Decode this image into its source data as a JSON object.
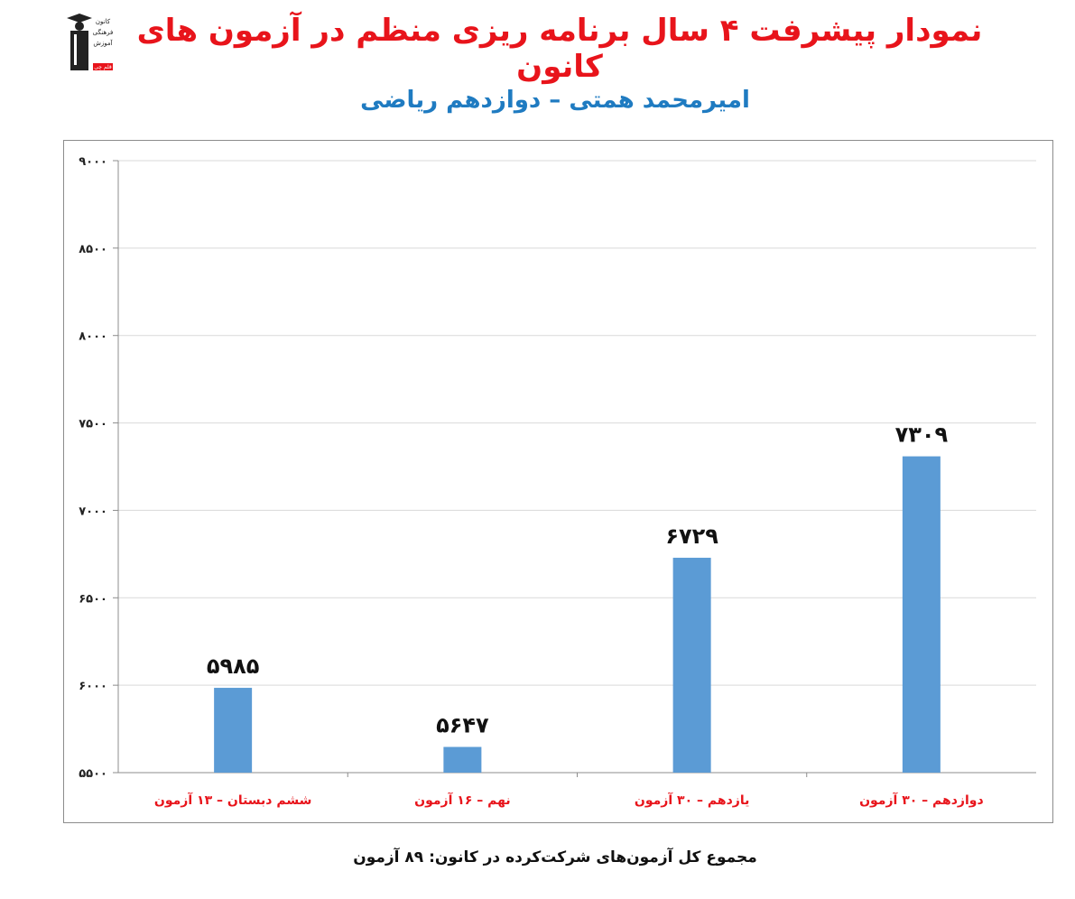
{
  "header": {
    "title": "نمودار پیشرفت ۴ سال برنامه ریزی منظم در آزمون های کانون",
    "subtitle": "امیرمحمد همتی – دوازدهم ریاضی"
  },
  "logo": {
    "icon": "graduate-figure-icon",
    "lines": [
      "کانون",
      "فرهنگی",
      "آموزش",
      "قلم چی"
    ]
  },
  "footer": {
    "text": "مجموع کل آزمون‌های شرکت‌کرده در کانون:  ۸۹ آزمون"
  },
  "colors": {
    "bar": "#5b9bd5",
    "category_label": "#e8141b",
    "grid": "#d9d9d9",
    "axis": "#8c8c8c"
  },
  "chart_data": {
    "type": "bar",
    "categories": [
      "ششم دبستان – ۱۳ آزمون",
      "نهم – ۱۶ آزمون",
      "یازدهم – ۳۰ آزمون",
      "دوازدهم – ۳۰ آزمون"
    ],
    "values": [
      5985,
      5647,
      6729,
      7309
    ],
    "value_labels": [
      "۵۹۸۵",
      "۵۶۴۷",
      "۶۷۲۹",
      "۷۳۰۹"
    ],
    "ylim": [
      5500,
      9000
    ],
    "yticks": [
      5500,
      6000,
      6500,
      7000,
      7500,
      8000,
      8500,
      9000
    ],
    "ytick_labels": [
      "۵۵۰۰",
      "۶۰۰۰",
      "۶۵۰۰",
      "۷۰۰۰",
      "۷۵۰۰",
      "۸۰۰۰",
      "۸۵۰۰",
      "۹۰۰۰"
    ],
    "grid": true,
    "legend": false
  }
}
